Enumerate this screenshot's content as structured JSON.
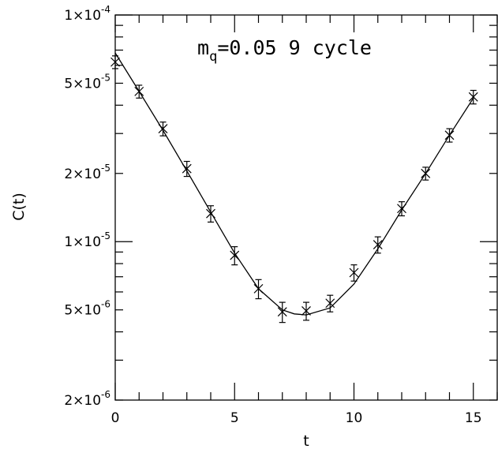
{
  "chart_data": {
    "type": "scatter",
    "title": "",
    "xlabel": "t",
    "ylabel": "C(t)",
    "xlim": [
      0,
      16
    ],
    "ylim": [
      2e-06,
      0.0001
    ],
    "yscale": "log",
    "grid": false,
    "annotation": {
      "base": "m",
      "sub": "q",
      "rest": "=0.05 9 cycle"
    },
    "x_tick_labels": [
      {
        "value": 0,
        "label": "0"
      },
      {
        "value": 5,
        "label": "5"
      },
      {
        "value": 10,
        "label": "10"
      },
      {
        "value": 15,
        "label": "15"
      }
    ],
    "y_tick_labels": [
      {
        "value": 0.0001,
        "mantissa": "1",
        "exponent": "-4"
      },
      {
        "value": 5e-05,
        "mantissa": "5",
        "exponent": "-5"
      },
      {
        "value": 2e-05,
        "mantissa": "2",
        "exponent": "-5"
      },
      {
        "value": 1e-05,
        "mantissa": "1",
        "exponent": "-5"
      },
      {
        "value": 5e-06,
        "mantissa": "5",
        "exponent": "-6"
      },
      {
        "value": 2e-06,
        "mantissa": "2",
        "exponent": "-6"
      }
    ],
    "points": [
      {
        "x": 0,
        "y": 6.2e-05,
        "err": 4e-06
      },
      {
        "x": 1,
        "y": 4.6e-05,
        "err": 3e-06
      },
      {
        "x": 2,
        "y": 3.15e-05,
        "err": 2.2e-06
      },
      {
        "x": 3,
        "y": 2.1e-05,
        "err": 1.6e-06
      },
      {
        "x": 4,
        "y": 1.33e-05,
        "err": 1.1e-06
      },
      {
        "x": 5,
        "y": 8.7e-06,
        "err": 8e-07
      },
      {
        "x": 6,
        "y": 6.2e-06,
        "err": 6e-07
      },
      {
        "x": 7,
        "y": 4.9e-06,
        "err": 5e-07
      },
      {
        "x": 8,
        "y": 4.95e-06,
        "err": 4.5e-07
      },
      {
        "x": 9,
        "y": 5.35e-06,
        "err": 4.5e-07
      },
      {
        "x": 10,
        "y": 7.3e-06,
        "err": 6e-07
      },
      {
        "x": 11,
        "y": 9.7e-06,
        "err": 8e-07
      },
      {
        "x": 12,
        "y": 1.4e-05,
        "err": 1e-06
      },
      {
        "x": 13,
        "y": 2e-05,
        "err": 1.3e-06
      },
      {
        "x": 14,
        "y": 2.95e-05,
        "err": 2e-06
      },
      {
        "x": 15,
        "y": 4.35e-05,
        "err": 3e-06
      }
    ],
    "fit_curve": {
      "x": [
        0,
        1,
        2,
        3,
        4,
        5,
        6,
        7,
        7.5,
        8,
        9,
        10,
        11,
        12,
        13,
        14,
        15
      ],
      "y": [
        6.8e-05,
        4.6e-05,
        3.1e-05,
        2.05e-05,
        1.35e-05,
        8.9e-06,
        6.2e-06,
        5e-06,
        4.8e-06,
        4.75e-06,
        5.1e-06,
        6.5e-06,
        9.3e-06,
        1.38e-05,
        2e-05,
        2.95e-05,
        4.3e-05
      ]
    }
  }
}
